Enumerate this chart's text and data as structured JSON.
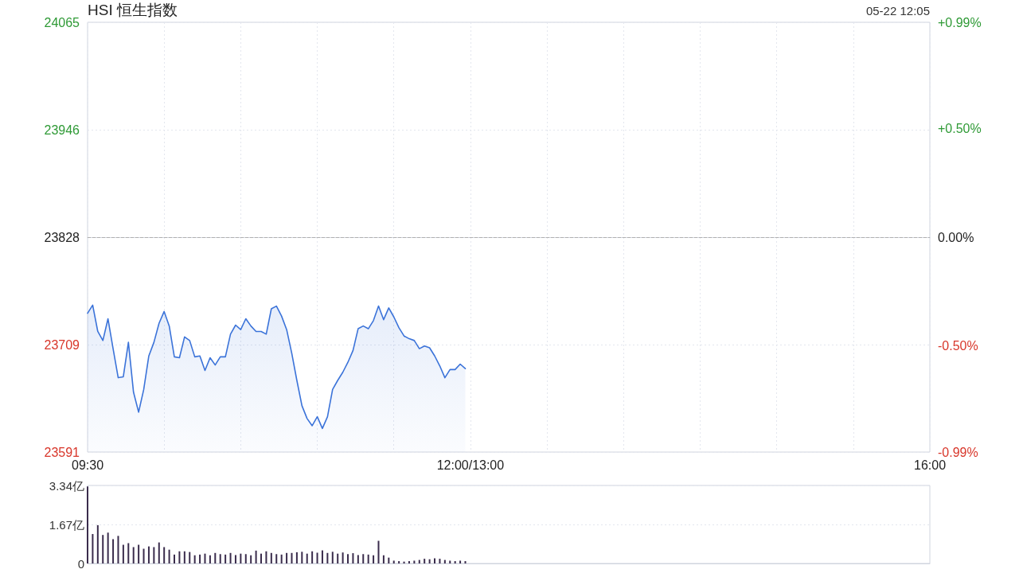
{
  "chart_data": [
    {
      "type": "area",
      "title": "HSI 恒生指数",
      "annotations": [
        "05-22 12:05"
      ],
      "categories": [
        "09:30",
        null,
        null,
        null,
        null,
        null,
        null,
        null,
        null,
        null,
        null,
        null,
        null,
        null,
        null,
        null,
        null,
        null,
        null,
        null,
        null,
        null,
        null,
        null,
        null,
        null,
        null,
        null,
        null,
        null,
        null,
        null,
        null,
        null,
        null,
        null,
        null,
        null,
        null,
        null,
        null,
        null,
        null,
        null,
        null,
        null,
        null,
        null,
        null,
        null,
        null,
        null,
        null,
        null,
        null,
        null,
        null,
        null,
        null,
        null,
        null,
        null,
        null,
        null,
        null,
        null,
        null,
        null,
        null,
        null,
        null,
        null,
        null,
        null,
        null,
        "12:00/13:00",
        null,
        null,
        null,
        null,
        null,
        null,
        null,
        null,
        null,
        null,
        null,
        null,
        null,
        null,
        null,
        null,
        null,
        null,
        null,
        null,
        null,
        null,
        null,
        null,
        null,
        null,
        null,
        null,
        null,
        null,
        null,
        null,
        null,
        null,
        null,
        null,
        null,
        null,
        null,
        null,
        null,
        null,
        null,
        null,
        null,
        null,
        null,
        null,
        null,
        null,
        null,
        null,
        null,
        null,
        null,
        null,
        null,
        null,
        null,
        null,
        null,
        null,
        null,
        null,
        null,
        null,
        null,
        null,
        null,
        null,
        null,
        null,
        null,
        null,
        null,
        null,
        null,
        null,
        null,
        null,
        null,
        null,
        null,
        null,
        null,
        null,
        null,
        null,
        null,
        "16:00"
      ],
      "series": [
        {
          "color": "#3b73d9",
          "values": [
            23744,
            23753,
            23724,
            23714,
            23738,
            23705,
            23673,
            23674,
            23712,
            23657,
            23635,
            23660,
            23697,
            23712,
            23733,
            23746,
            23730,
            23696,
            23695,
            23718,
            23714,
            23696,
            23697,
            23681,
            23695,
            23687,
            23696,
            23696,
            23721,
            23731,
            23726,
            23738,
            23730,
            23724,
            23724,
            23721,
            23749,
            23752,
            23741,
            23726,
            23700,
            23670,
            23642,
            23628,
            23620,
            23630,
            23617,
            23630,
            23660,
            23670,
            23679,
            23690,
            23703,
            23727,
            23730,
            23727,
            23736,
            23752,
            23737,
            23750,
            23740,
            23728,
            23719,
            23716,
            23714,
            23705,
            23708,
            23706,
            23697,
            23686,
            23673,
            23682,
            23682,
            23688,
            23683,
            null,
            null,
            null,
            null,
            null,
            null,
            null,
            null,
            null,
            null,
            null,
            null,
            null,
            null,
            null,
            null,
            null,
            null,
            null,
            null,
            null,
            null,
            null,
            null,
            null,
            null,
            null,
            null,
            null,
            null,
            null,
            null,
            null,
            null,
            null,
            null,
            null,
            null,
            null,
            null,
            null,
            null,
            null,
            null,
            null,
            null,
            null,
            null,
            null,
            null,
            null,
            null,
            null,
            null,
            null,
            null,
            null,
            null,
            null,
            null,
            null,
            null,
            null,
            null,
            null,
            null,
            null,
            null,
            null,
            null,
            null,
            null,
            null,
            null,
            null,
            null,
            null,
            null,
            null,
            null,
            null,
            null,
            null,
            null,
            null,
            null,
            null,
            null,
            null,
            null,
            null
          ]
        }
      ],
      "marker": "none",
      "line_style": "solid",
      "ylim": [
        23591,
        24065
      ],
      "yticks": [
        23591,
        23709,
        23828,
        23946,
        24065
      ],
      "y2lim": [
        -0.99,
        0.99
      ],
      "y2ticks": [
        {
          "value": -0.99,
          "label": "-0.99%"
        },
        {
          "value": -0.5,
          "label": "-0.50%"
        },
        {
          "value": 0,
          "label": "0.00%"
        },
        {
          "value": 0.5,
          "label": "+0.50%"
        },
        {
          "value": 0.99,
          "label": "+0.99%"
        }
      ],
      "ref_lines": [
        {
          "axis": "y",
          "value": 23828,
          "color": "#b0b0b0",
          "line_style": "dashed"
        }
      ],
      "grid": true
    },
    {
      "type": "bar",
      "tick_labels": "y",
      "categories": [
        null,
        null,
        null,
        null,
        null,
        null,
        null,
        null,
        null,
        null,
        null,
        null,
        null,
        null,
        null,
        null,
        null,
        null,
        null,
        null,
        null,
        null,
        null,
        null,
        null,
        null,
        null,
        null,
        null,
        null,
        null,
        null,
        null,
        null,
        null,
        null,
        null,
        null,
        null,
        null,
        null,
        null,
        null,
        null,
        null,
        null,
        null,
        null,
        null,
        null,
        null,
        null,
        null,
        null,
        null,
        null,
        null,
        null,
        null,
        null,
        null,
        null,
        null,
        null,
        null,
        null,
        null,
        null,
        null,
        null,
        null,
        null,
        null,
        null,
        null,
        null,
        null,
        null,
        null,
        null,
        null,
        null,
        null,
        null,
        null,
        null,
        null,
        null,
        null,
        null,
        null,
        null,
        null,
        null,
        null,
        null,
        null,
        null,
        null,
        null,
        null,
        null,
        null,
        null,
        null,
        null,
        null,
        null,
        null,
        null,
        null,
        null,
        null,
        null,
        null,
        null,
        null,
        null,
        null,
        null,
        null,
        null,
        null,
        null,
        null,
        null,
        null,
        null,
        null,
        null,
        null,
        null,
        null,
        null,
        null,
        null,
        null,
        null,
        null,
        null,
        null,
        null,
        null,
        null,
        null,
        null,
        null,
        null,
        null,
        null,
        null,
        null,
        null,
        null,
        null,
        null,
        null,
        null,
        null,
        null,
        null,
        null,
        null,
        null,
        null,
        null
      ],
      "series": [
        {
          "color": "#3a2c4c",
          "values": [
            3.3,
            1.26,
            1.64,
            1.22,
            1.32,
            1.04,
            1.18,
            0.8,
            0.87,
            0.7,
            0.8,
            0.63,
            0.73,
            0.7,
            0.9,
            0.7,
            0.59,
            0.38,
            0.52,
            0.52,
            0.49,
            0.35,
            0.38,
            0.42,
            0.35,
            0.45,
            0.4,
            0.38,
            0.45,
            0.36,
            0.42,
            0.4,
            0.35,
            0.55,
            0.42,
            0.52,
            0.45,
            0.4,
            0.38,
            0.45,
            0.45,
            0.48,
            0.5,
            0.42,
            0.52,
            0.46,
            0.56,
            0.45,
            0.5,
            0.42,
            0.47,
            0.4,
            0.44,
            0.36,
            0.4,
            0.38,
            0.35,
            0.97,
            0.35,
            0.25,
            0.12,
            0.1,
            0.08,
            0.1,
            0.12,
            0.15,
            0.2,
            0.18,
            0.22,
            0.2,
            0.15,
            0.12,
            0.1,
            0.12,
            0.1,
            null,
            null,
            null,
            null,
            null,
            null,
            null,
            null,
            null,
            null,
            null,
            null,
            null,
            null,
            null,
            null,
            null,
            null,
            null,
            null,
            null,
            null,
            null,
            null,
            null,
            null,
            null,
            null,
            null,
            null,
            null,
            null,
            null,
            null,
            null,
            null,
            null,
            null,
            null,
            null,
            null,
            null,
            null,
            null,
            null,
            null,
            null,
            null,
            null,
            null,
            null,
            null,
            null,
            null,
            null,
            null,
            null,
            null,
            null,
            null,
            null,
            null,
            null,
            null,
            null,
            null,
            null,
            null,
            null,
            null,
            null,
            null,
            null,
            null,
            null,
            null,
            null,
            null,
            null,
            null,
            null,
            null,
            null,
            null,
            null,
            null,
            null,
            null,
            null,
            null,
            null
          ]
        }
      ],
      "ylim": [
        0,
        3.34
      ],
      "yticks": [
        0,
        {
          "value": 1.67,
          "label": "1.67亿"
        },
        {
          "value": 3.34,
          "label": "3.34亿"
        }
      ],
      "grid": "y"
    }
  ]
}
